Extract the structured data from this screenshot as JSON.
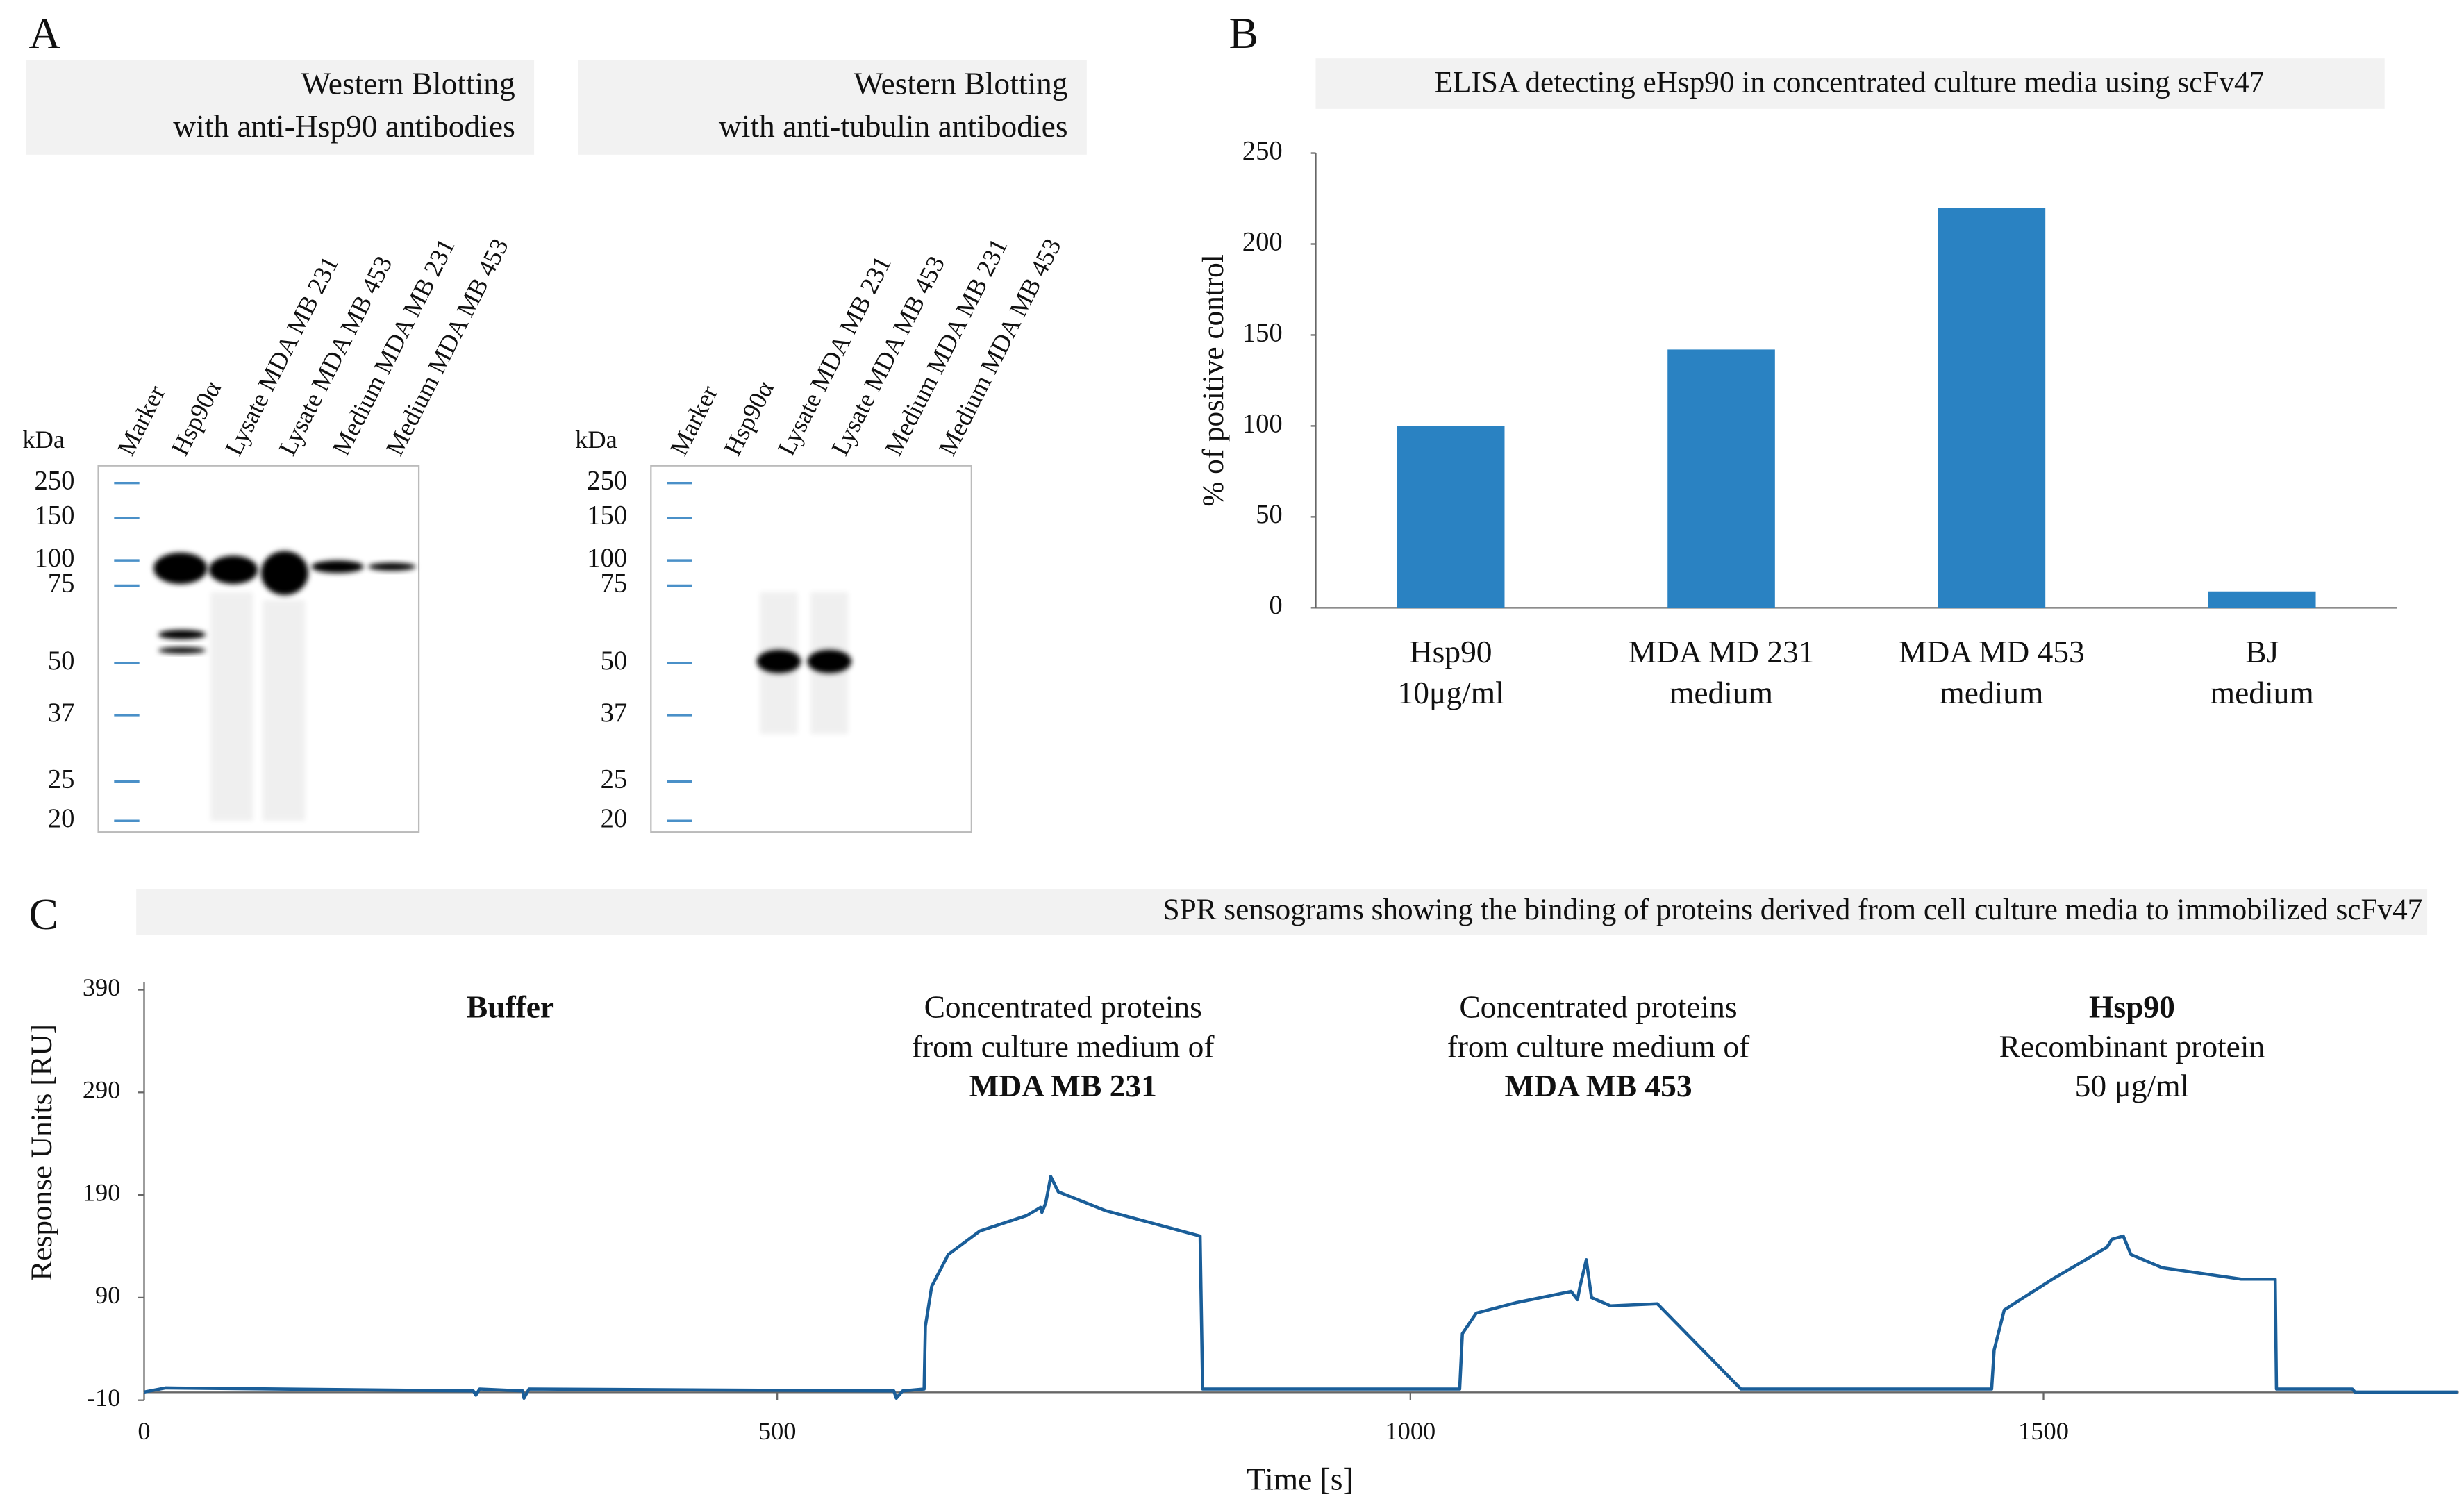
{
  "panel_labels": [
    "A",
    "B",
    "C"
  ],
  "blots": [
    {
      "title": [
        "Western Blotting",
        "with anti-Hsp90 antibodies"
      ],
      "unit": "kDa",
      "lanes": [
        "Marker",
        "Hsp90α",
        "Lysate MDA MB 231",
        "Lysate MDA MB 453",
        "Medium MDA MB 231",
        "Medium MDA MB 453"
      ],
      "markers": [
        250,
        150,
        100,
        75,
        50,
        37,
        25,
        20
      ]
    },
    {
      "title": [
        "Western Blotting",
        "with anti-tubulin antibodies"
      ],
      "unit": "kDa",
      "lanes": [
        "Marker",
        "Hsp90α",
        "Lysate MDA MB 231",
        "Lysate MDA MB 453",
        "Medium MDA MB 231",
        "Medium MDA MB 453"
      ],
      "markers": [
        250,
        150,
        100,
        75,
        50,
        37,
        25,
        20
      ]
    }
  ],
  "chart_data": [
    {
      "type": "bar",
      "title": "ELISA detecting eHsp90 in concentrated culture media using scFv47",
      "y_label": "% of positive control",
      "categories": [
        [
          "Hsp90",
          "10μg/ml"
        ],
        [
          "MDA MD 231",
          "medium"
        ],
        [
          "MDA MD 453",
          "medium"
        ],
        [
          "BJ",
          "medium"
        ]
      ],
      "values": [
        100,
        142,
        220,
        9
      ],
      "color": "#2a82c2",
      "ylim": [
        0,
        250
      ],
      "yticks": [
        0,
        50,
        100,
        150,
        200,
        250
      ]
    },
    {
      "type": "line",
      "title": "SPR sensograms showing the binding of proteins derived from cell culture media to immobilized scFv47",
      "x_label": "Time [s]",
      "y_label": "Response Units [RU]",
      "x": [
        0,
        17,
        260,
        262,
        265,
        299,
        300,
        304,
        592,
        594,
        599,
        616,
        617,
        622,
        635,
        660,
        697,
        708,
        709,
        712,
        716,
        722,
        759,
        834,
        836,
        1039,
        1041,
        1052,
        1083,
        1127,
        1132,
        1134,
        1139,
        1143,
        1158,
        1195,
        1261,
        1262,
        1459,
        1461,
        1469,
        1507,
        1550,
        1554,
        1563,
        1569,
        1594,
        1656,
        1683,
        1684,
        1744,
        1746,
        1827
      ],
      "series": [
        {
          "color": "#1a5e99",
          "values": [
            -2,
            2,
            -1,
            -5,
            1,
            -1,
            -8,
            1,
            -1,
            -8,
            -1,
            1,
            62,
            101,
            132,
            155,
            170,
            178,
            173,
            182,
            208,
            193,
            175,
            150,
            1,
            1,
            55,
            75,
            85,
            96,
            88,
            101,
            127,
            90,
            82,
            84,
            1,
            1,
            1,
            39,
            78,
            108,
            139,
            147,
            150,
            132,
            119,
            108,
            108,
            1,
            1,
            -2,
            -2
          ]
        }
      ],
      "xlim": [
        0,
        1828
      ],
      "xticks": [
        0,
        500,
        1000,
        1500
      ],
      "ylim": [
        -10,
        390
      ],
      "yticks": [
        -10,
        90,
        190,
        290,
        390
      ],
      "annotations": [
        [
          "Buffer"
        ],
        [
          "Concentrated proteins",
          "from culture medium of",
          "MDA MB 231"
        ],
        [
          "Concentrated proteins",
          "from culture medium of",
          "MDA MB 453"
        ],
        [
          "Hsp90",
          "Recombinant protein",
          "50 μg/ml"
        ]
      ]
    }
  ]
}
